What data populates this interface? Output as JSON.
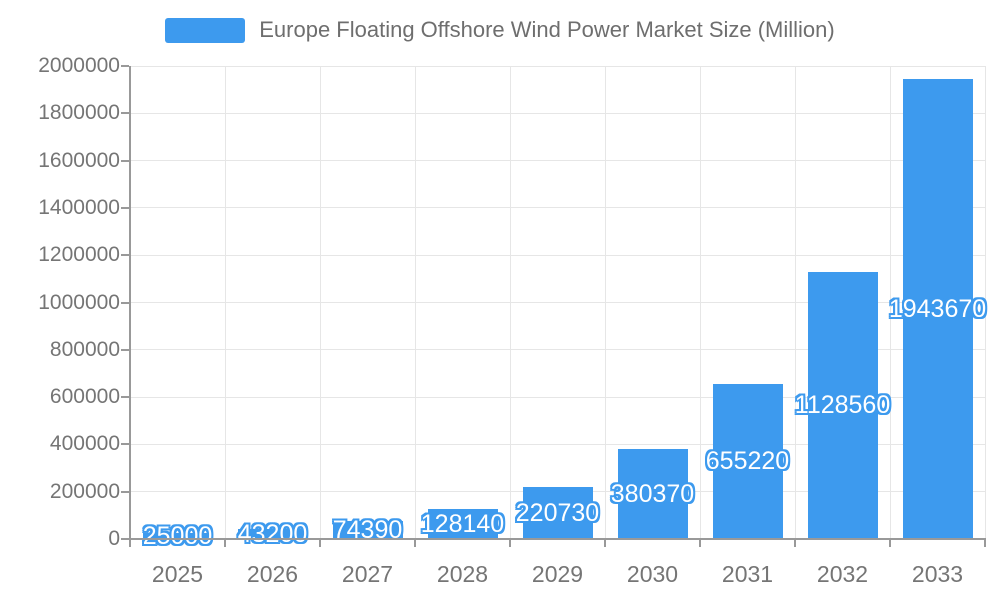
{
  "chart_data": {
    "type": "bar",
    "title": "Europe Floating Offshore Wind Power Market Size (Million)",
    "categories": [
      "2025",
      "2026",
      "2027",
      "2028",
      "2029",
      "2030",
      "2031",
      "2032",
      "2033"
    ],
    "values": [
      25000,
      43200,
      74390,
      128140,
      220730,
      380370,
      655220,
      1128560,
      1943670
    ],
    "value_labels": [
      "25000",
      "43200",
      "74390",
      "128140",
      "220730",
      "380370",
      "655220",
      "1128560",
      "1943670"
    ],
    "xlabel": "",
    "ylabel": "",
    "ylim": [
      0,
      2000000
    ],
    "ytick_step": 200000,
    "ytick_labels": [
      "0",
      "200000",
      "400000",
      "600000",
      "800000",
      "1000000",
      "1200000",
      "1400000",
      "1600000",
      "1800000",
      "2000000"
    ],
    "grid": true,
    "legend_position": "top-center",
    "colors": {
      "bar": "#3d9aee",
      "gridline": "#e6e6e6",
      "axis": "#999999",
      "tick_text": "#757575",
      "title_text": "#6e6e6e",
      "value_label_text": "#ffffff"
    }
  }
}
